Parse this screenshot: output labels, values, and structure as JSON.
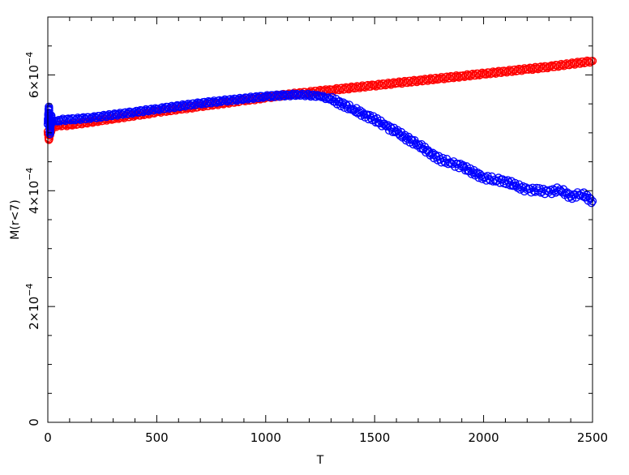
{
  "chart_data": {
    "type": "scatter",
    "title": "",
    "xlabel": "T",
    "ylabel": "M(r<7)",
    "xlim": [
      0,
      2500
    ],
    "ylim": [
      0,
      0.0007
    ],
    "x_ticks": [
      0,
      500,
      1000,
      1500,
      2000,
      2500
    ],
    "x_tick_labels": [
      "0",
      "500",
      "1000",
      "1500",
      "2000",
      "2500"
    ],
    "y_ticks": [
      0,
      0.0002,
      0.0004,
      0.0006
    ],
    "y_tick_labels": [
      {
        "mantissa": "0",
        "exp": ""
      },
      {
        "mantissa": "2×10",
        "exp": "−4"
      },
      {
        "mantissa": "4×10",
        "exp": "−4"
      },
      {
        "mantissa": "6×10",
        "exp": "−4"
      }
    ],
    "grid": false,
    "marker": "open-circle",
    "series": [
      {
        "color": "#ff0000",
        "x": [
          0,
          5,
          10,
          20,
          50,
          100,
          200,
          300,
          400,
          500,
          600,
          700,
          800,
          900,
          1000,
          1100,
          1200,
          1300,
          1400,
          1500,
          1600,
          1700,
          1800,
          1900,
          2000,
          2100,
          2200,
          2300,
          2400,
          2500
        ],
        "y": [
          0.000502,
          0.000488,
          0.000496,
          0.000511,
          0.000513,
          0.000514,
          0.000519,
          0.000525,
          0.00053,
          0.000536,
          0.000541,
          0.000546,
          0.000551,
          0.000556,
          0.000561,
          0.000566,
          0.00057,
          0.000574,
          0.000578,
          0.000582,
          0.000586,
          0.00059,
          0.000594,
          0.000598,
          0.000602,
          0.000606,
          0.00061,
          0.000614,
          0.000619,
          0.000624
        ]
      },
      {
        "color": "#0000ff",
        "x": [
          0,
          5,
          10,
          15,
          20,
          30,
          50,
          100,
          200,
          300,
          400,
          500,
          600,
          700,
          800,
          900,
          1000,
          1100,
          1150,
          1200,
          1250,
          1300,
          1350,
          1400,
          1450,
          1500,
          1550,
          1600,
          1650,
          1700,
          1750,
          1800,
          1850,
          1900,
          1950,
          2000,
          2050,
          2100,
          2150,
          2200,
          2250,
          2300,
          2350,
          2400,
          2450,
          2500
        ],
        "y": [
          0.000515,
          0.000545,
          0.000498,
          0.00053,
          0.000518,
          0.000521,
          0.000522,
          0.000523,
          0.000526,
          0.000531,
          0.000536,
          0.000541,
          0.000546,
          0.000551,
          0.000555,
          0.000559,
          0.000563,
          0.000565,
          0.000566,
          0.000565,
          0.000563,
          0.000558,
          0.00055,
          0.000541,
          0.000532,
          0.000523,
          0.000512,
          0.000502,
          0.00049,
          0.00048,
          0.000466,
          0.000454,
          0.000448,
          0.000442,
          0.000432,
          0.000423,
          0.000419,
          0.000417,
          0.000408,
          0.000402,
          0.0004,
          0.000398,
          0.000402,
          0.00039,
          0.000395,
          0.000382
        ]
      }
    ]
  }
}
